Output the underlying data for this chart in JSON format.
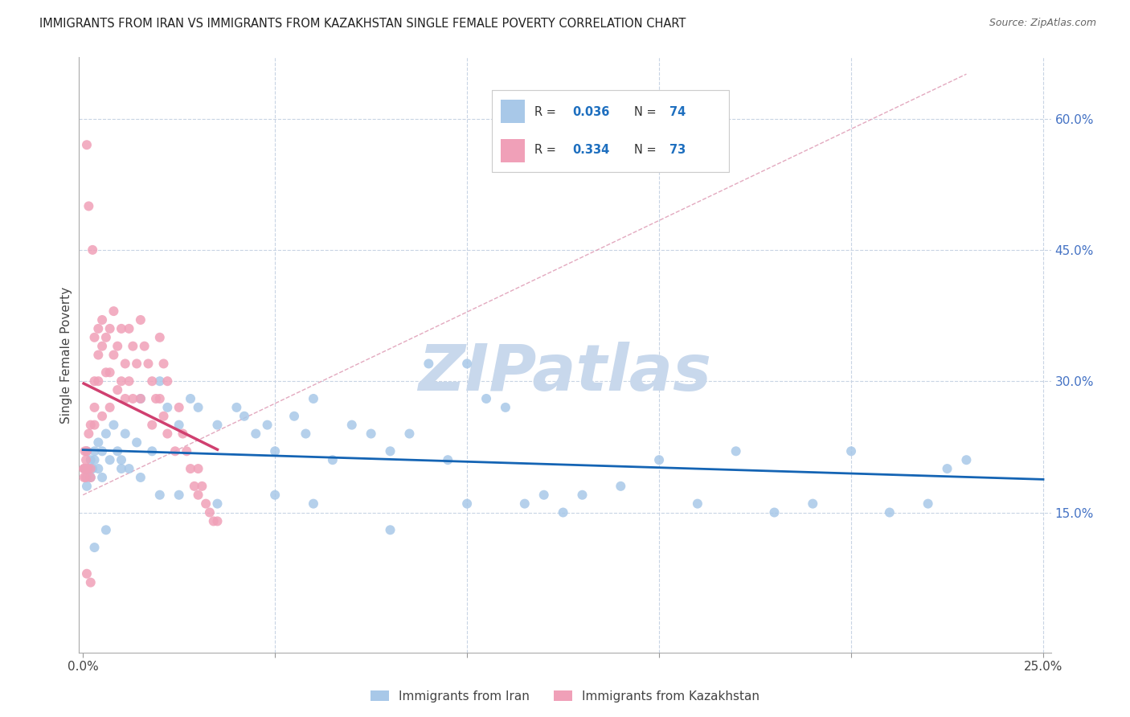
{
  "title": "IMMIGRANTS FROM IRAN VS IMMIGRANTS FROM KAZAKHSTAN SINGLE FEMALE POVERTY CORRELATION CHART",
  "source": "Source: ZipAtlas.com",
  "ylabel": "Single Female Poverty",
  "right_ytick_vals": [
    0.6,
    0.45,
    0.3,
    0.15
  ],
  "xlim_low": -0.001,
  "xlim_high": 0.252,
  "ylim_low": -0.01,
  "ylim_high": 0.67,
  "iran_color": "#A8C8E8",
  "kazakhstan_color": "#F0A0B8",
  "iran_trend_color": "#1464B4",
  "kazakhstan_trend_color": "#D04070",
  "diag_color": "#E0A0B8",
  "watermark_color": "#C8D8EC",
  "iran_x": [
    0.0005,
    0.001,
    0.001,
    0.001,
    0.0015,
    0.002,
    0.002,
    0.0025,
    0.003,
    0.003,
    0.004,
    0.004,
    0.005,
    0.005,
    0.006,
    0.007,
    0.008,
    0.009,
    0.01,
    0.011,
    0.012,
    0.014,
    0.015,
    0.018,
    0.02,
    0.022,
    0.025,
    0.028,
    0.03,
    0.035,
    0.04,
    0.042,
    0.045,
    0.048,
    0.05,
    0.055,
    0.058,
    0.06,
    0.065,
    0.07,
    0.075,
    0.08,
    0.085,
    0.09,
    0.095,
    0.1,
    0.105,
    0.11,
    0.115,
    0.12,
    0.125,
    0.13,
    0.14,
    0.15,
    0.16,
    0.17,
    0.18,
    0.19,
    0.2,
    0.21,
    0.22,
    0.225,
    0.23,
    0.003,
    0.006,
    0.01,
    0.015,
    0.02,
    0.025,
    0.035,
    0.05,
    0.06,
    0.08,
    0.1
  ],
  "iran_y": [
    0.2,
    0.19,
    0.22,
    0.18,
    0.2,
    0.21,
    0.19,
    0.2,
    0.22,
    0.21,
    0.23,
    0.2,
    0.22,
    0.19,
    0.24,
    0.21,
    0.25,
    0.22,
    0.21,
    0.24,
    0.2,
    0.23,
    0.28,
    0.22,
    0.3,
    0.27,
    0.25,
    0.28,
    0.27,
    0.25,
    0.27,
    0.26,
    0.24,
    0.25,
    0.22,
    0.26,
    0.24,
    0.28,
    0.21,
    0.25,
    0.24,
    0.22,
    0.24,
    0.32,
    0.21,
    0.32,
    0.28,
    0.27,
    0.16,
    0.17,
    0.15,
    0.17,
    0.18,
    0.21,
    0.16,
    0.22,
    0.15,
    0.16,
    0.22,
    0.15,
    0.16,
    0.2,
    0.21,
    0.11,
    0.13,
    0.2,
    0.19,
    0.17,
    0.17,
    0.16,
    0.17,
    0.16,
    0.13,
    0.16
  ],
  "kaz_x": [
    0.0002,
    0.0003,
    0.0004,
    0.0005,
    0.0006,
    0.0007,
    0.0008,
    0.001,
    0.001,
    0.001,
    0.0012,
    0.0015,
    0.0015,
    0.002,
    0.002,
    0.002,
    0.0025,
    0.003,
    0.003,
    0.003,
    0.003,
    0.004,
    0.004,
    0.004,
    0.005,
    0.005,
    0.005,
    0.006,
    0.006,
    0.007,
    0.007,
    0.007,
    0.008,
    0.008,
    0.009,
    0.009,
    0.01,
    0.01,
    0.011,
    0.011,
    0.012,
    0.012,
    0.013,
    0.013,
    0.014,
    0.015,
    0.015,
    0.016,
    0.017,
    0.018,
    0.018,
    0.019,
    0.02,
    0.02,
    0.021,
    0.021,
    0.022,
    0.022,
    0.024,
    0.025,
    0.026,
    0.027,
    0.028,
    0.029,
    0.03,
    0.03,
    0.031,
    0.032,
    0.033,
    0.034,
    0.035,
    0.001,
    0.002
  ],
  "kaz_y": [
    0.2,
    0.19,
    0.2,
    0.22,
    0.2,
    0.19,
    0.21,
    0.57,
    0.22,
    0.2,
    0.2,
    0.24,
    0.5,
    0.25,
    0.19,
    0.2,
    0.45,
    0.35,
    0.3,
    0.27,
    0.25,
    0.36,
    0.33,
    0.3,
    0.37,
    0.34,
    0.26,
    0.35,
    0.31,
    0.36,
    0.31,
    0.27,
    0.38,
    0.33,
    0.34,
    0.29,
    0.36,
    0.3,
    0.32,
    0.28,
    0.36,
    0.3,
    0.34,
    0.28,
    0.32,
    0.37,
    0.28,
    0.34,
    0.32,
    0.3,
    0.25,
    0.28,
    0.35,
    0.28,
    0.32,
    0.26,
    0.3,
    0.24,
    0.22,
    0.27,
    0.24,
    0.22,
    0.2,
    0.18,
    0.2,
    0.17,
    0.18,
    0.16,
    0.15,
    0.14,
    0.14,
    0.08,
    0.07
  ]
}
